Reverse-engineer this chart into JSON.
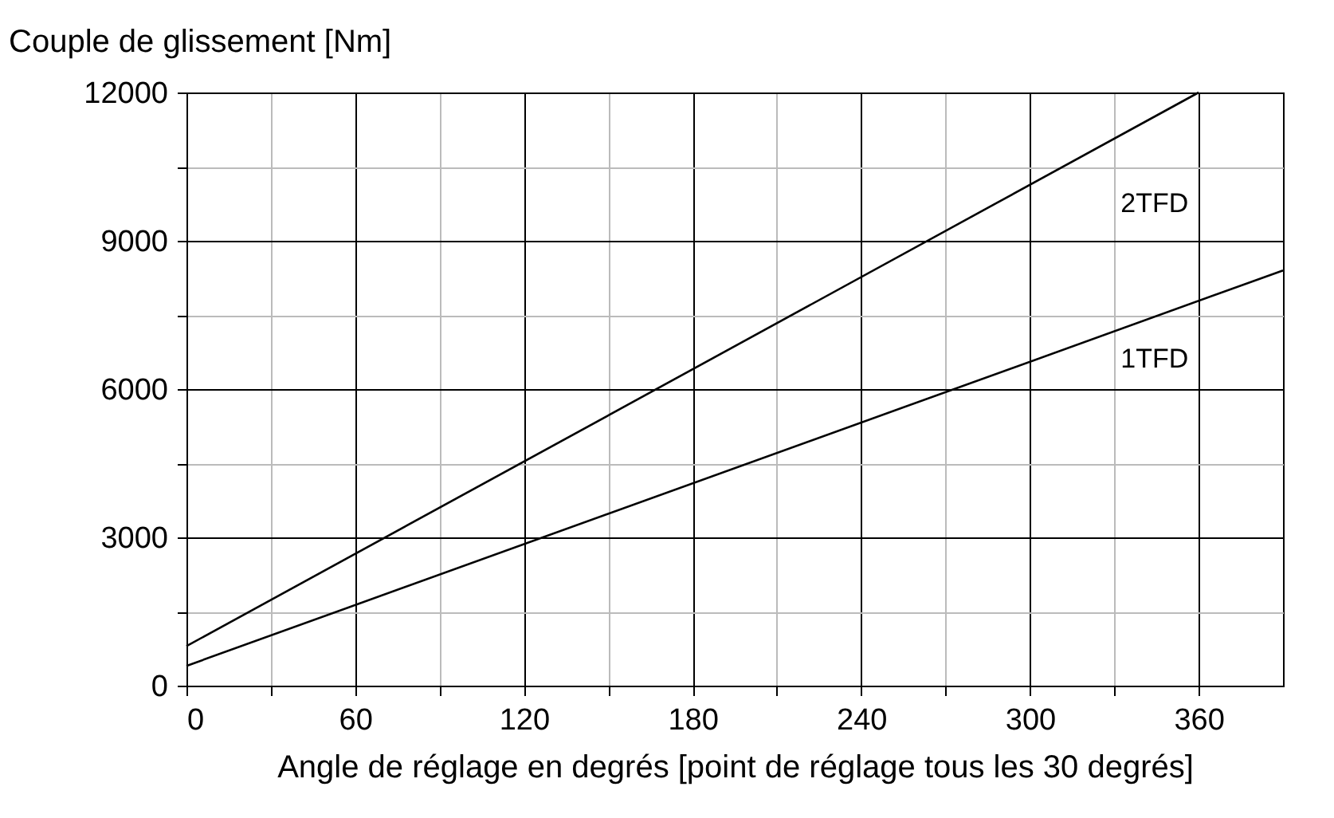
{
  "chart_data": {
    "type": "line",
    "xlabel": "Angle de réglage en degrés [point de réglage tous les 30 degrés]",
    "ylabel": "Couple de glissement [Nm]",
    "xlim": [
      0,
      390
    ],
    "ylim": [
      0,
      12000
    ],
    "xticks": [
      0,
      {
        "value": 30,
        "label": null
      },
      60,
      {
        "value": 90,
        "label": null
      },
      120,
      {
        "value": 150,
        "label": null
      },
      180,
      {
        "value": 210,
        "label": null
      },
      240,
      {
        "value": 270,
        "label": null
      },
      300,
      {
        "value": 330,
        "label": null
      },
      360
    ],
    "yticks": [
      0,
      {
        "value": 1500,
        "label": null
      },
      3000,
      {
        "value": 4500,
        "label": null
      },
      6000,
      {
        "value": 7500,
        "label": null
      },
      9000,
      {
        "value": 10500,
        "label": null
      },
      12000
    ],
    "grid": true,
    "marker": "none",
    "line_style": "solid",
    "series": [
      {
        "name": "2TFD",
        "color": "#000000",
        "x": [
          0,
          360
        ],
        "values": [
          800,
          12000
        ]
      },
      {
        "name": "1TFD",
        "color": "#000000",
        "x": [
          0,
          390
        ],
        "values": [
          400,
          8400
        ]
      }
    ]
  }
}
